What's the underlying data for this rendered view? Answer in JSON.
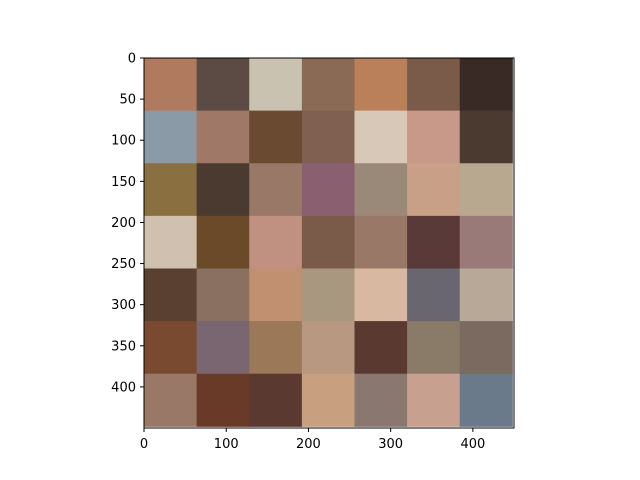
{
  "chart_data": {
    "type": "heatmap",
    "title": "",
    "xlabel": "",
    "ylabel": "",
    "xlim": [
      0,
      450
    ],
    "ylim": [
      450,
      0
    ],
    "xticks": [
      0,
      100,
      200,
      300,
      400
    ],
    "yticks": [
      0,
      50,
      100,
      150,
      200,
      250,
      300,
      350,
      400
    ],
    "grid_shape": [
      7,
      7
    ],
    "cell_size": 64,
    "grid_on": false,
    "legend": "none",
    "cells": [
      [
        "#b07a5e",
        "#5c4a45",
        "#c9c2b0",
        "#8a6a55",
        "#b9805a",
        "#7a5a48",
        "#3a2a25"
      ],
      [
        "#8a9aa6",
        "#a07868",
        "#6a4a30",
        "#806050",
        "#d8c8b8",
        "#c89888",
        "#4a3a30"
      ],
      [
        "#8a7040",
        "#4a3a30",
        "#9a7868",
        "#8a6070",
        "#9a8878",
        "#c8a088",
        "#b8a890"
      ],
      [
        "#d0c0b0",
        "#6a4a28",
        "#c09080",
        "#7a5a48",
        "#9a7868",
        "#5a3a38",
        "#9a7a78"
      ],
      [
        "#5a4030",
        "#8a7060",
        "#c09070",
        "#a89880",
        "#d8b8a0",
        "#6a6670",
        "#b8a898"
      ],
      [
        "#7a4a30",
        "#7a6670",
        "#9a7858",
        "#b89880",
        "#5a3a30",
        "#8a7a68",
        "#7a6a60"
      ],
      [
        "#9a7868",
        "#6a3a28",
        "#5a3a30",
        "#c8a080",
        "#8a7870",
        "#c8a090",
        "#6a7a8a"
      ]
    ]
  }
}
